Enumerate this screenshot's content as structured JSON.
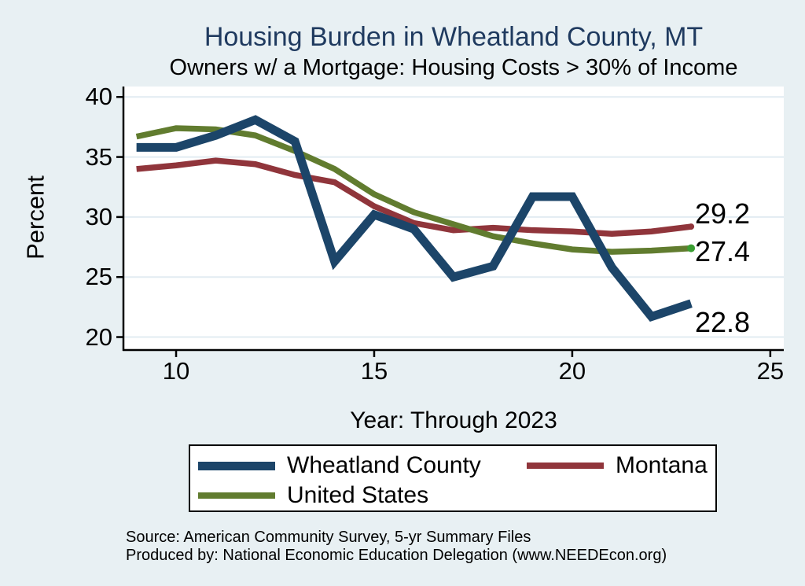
{
  "title": "Housing Burden in Wheatland County, MT",
  "subtitle": "Owners w/ a Mortgage: Housing Costs > 30% of Income",
  "colors": {
    "background": "#e8f0f3",
    "plot_background": "#ffffff",
    "gridline": "#e2ecf2",
    "axis": "#000000",
    "title_text": "#1f3a5f",
    "wheatland_blue": "#1c4569",
    "montana_maroon": "#90353b",
    "us_olive": "#617c2f",
    "us_end_dot_green": "#3a9e32"
  },
  "chart_data": {
    "type": "line",
    "x": [
      9,
      10,
      11,
      12,
      13,
      14,
      15,
      16,
      17,
      18,
      19,
      20,
      21,
      22,
      23
    ],
    "series": [
      {
        "name": "Montana",
        "color": "#90353b",
        "line_width": 7.5,
        "values": [
          34.0,
          34.3,
          34.7,
          34.4,
          33.5,
          32.9,
          30.9,
          29.5,
          28.9,
          29.1,
          28.9,
          28.8,
          28.6,
          28.8,
          29.2
        ],
        "end_label": "29.2",
        "end_dot": true,
        "end_dot_color": "#90353b",
        "end_dot_radius": 4,
        "end_label_dy": -16
      },
      {
        "name": "United States",
        "color": "#617c2f",
        "line_width": 7.5,
        "values": [
          36.7,
          37.4,
          37.3,
          36.8,
          35.5,
          34.0,
          31.9,
          30.4,
          29.4,
          28.4,
          27.8,
          27.3,
          27.1,
          27.2,
          27.4
        ],
        "end_label": "27.4",
        "end_dot": true,
        "end_dot_color": "#3a9e32",
        "end_dot_radius": 5,
        "end_label_dy": 4
      },
      {
        "name": "Wheatland County",
        "color": "#1c4569",
        "line_width": 11,
        "values": [
          35.8,
          35.8,
          36.8,
          38.1,
          36.3,
          26.3,
          30.2,
          29.0,
          25.0,
          25.9,
          31.7,
          31.7,
          25.8,
          21.7,
          22.8
        ],
        "end_label": "22.8",
        "end_dot": false,
        "end_label_dy": 24
      }
    ],
    "xlabel": "Year: Through 2023",
    "ylabel": "Percent",
    "x_ticks": [
      10,
      15,
      20,
      25
    ],
    "y_ticks": [
      40,
      35,
      30,
      25,
      20
    ],
    "xlim": [
      8.67,
      25.34
    ],
    "ylim": [
      18.92,
      40.87
    ],
    "grid": "horizontal",
    "legend_position": "bottom"
  },
  "legend": {
    "items": [
      {
        "label": "Wheatland County",
        "color": "#1c4569",
        "thickness": 11
      },
      {
        "label": "Montana",
        "color": "#90353b",
        "thickness": 8
      },
      {
        "label": "United States",
        "color": "#617c2f",
        "thickness": 8
      }
    ]
  },
  "footer": {
    "source_line": "Source: American Community Survey, 5-yr Summary Files",
    "produced_by_line": "Produced by: National Economic Education Delegation (www.NEEDEcon.org)"
  }
}
